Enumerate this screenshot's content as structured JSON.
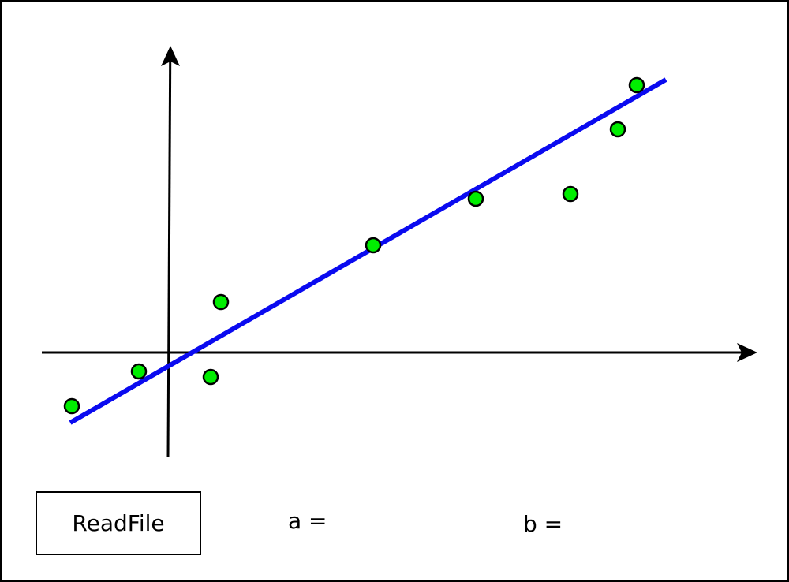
{
  "button": {
    "label": "ReadFile"
  },
  "params": {
    "a_label": "a =",
    "b_label": "b ="
  },
  "colors": {
    "point_fill": "#00ee00",
    "point_stroke": "#000000",
    "line": "#0a0af0",
    "axis": "#000000"
  },
  "chart_data": {
    "type": "scatter",
    "title": "",
    "xlabel": "",
    "ylabel": "",
    "grid": false,
    "xlim": [
      -1.28,
      7.3
    ],
    "ylim": [
      -1.26,
      3.56
    ],
    "points": [
      {
        "x": -1.23,
        "y": -0.68
      },
      {
        "x": -0.38,
        "y": -0.24
      },
      {
        "x": 0.53,
        "y": -0.31
      },
      {
        "x": 0.66,
        "y": 0.64
      },
      {
        "x": 2.59,
        "y": 1.36
      },
      {
        "x": 3.89,
        "y": 1.95
      },
      {
        "x": 5.09,
        "y": 2.01
      },
      {
        "x": 5.69,
        "y": 2.83
      },
      {
        "x": 5.93,
        "y": 3.39
      }
    ],
    "fit_line": {
      "x": [
        -1.25,
        6.3
      ],
      "y": [
        -0.89,
        3.46
      ]
    }
  }
}
